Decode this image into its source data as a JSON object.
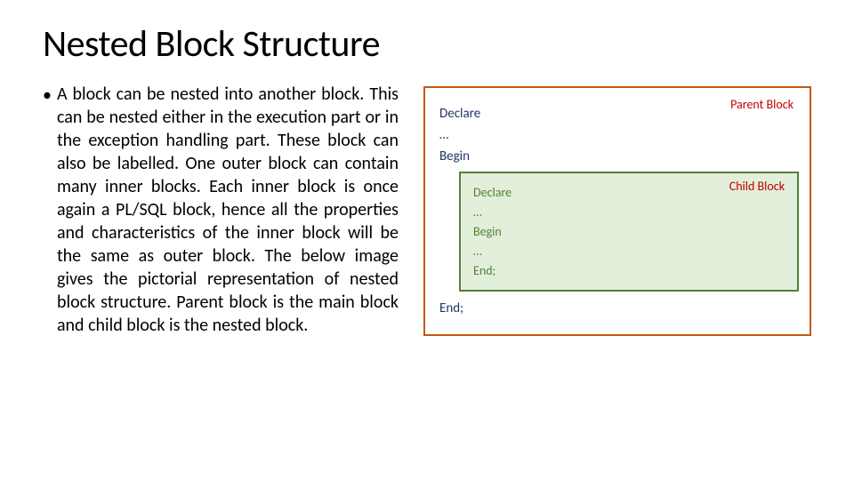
{
  "title": "Nested Block Structure",
  "bullet": "A block can be nested into another block. This can be nested either in the execution part or in the exception handling part. These block can also be labelled. One outer block can contain many inner blocks. Each inner block is once again a PL/SQL block, hence all the properties and characteristics of the inner block will be the same as outer block. The below image gives the pictorial representation of nested block structure. Parent block is the main block and child block is the nested block.",
  "diagram": {
    "parent": {
      "border_color": "#c55a11",
      "label": "Parent Block",
      "label_color": "#c00000",
      "kw_color": "#1f3864",
      "lines": {
        "declare": "Declare",
        "dots1": "…",
        "begin": "Begin",
        "end": "End;"
      }
    },
    "child": {
      "border_color": "#548235",
      "bg_color": "#e2efda",
      "label": "Child Block",
      "label_color": "#c00000",
      "kw_color": "#548235",
      "lines": {
        "declare": "Declare",
        "dots1": "…",
        "begin": "Begin",
        "dots2": "…",
        "end": "End;"
      }
    }
  },
  "fonts": {
    "title_size": 42,
    "body_size": 20,
    "diagram_size": 15
  }
}
